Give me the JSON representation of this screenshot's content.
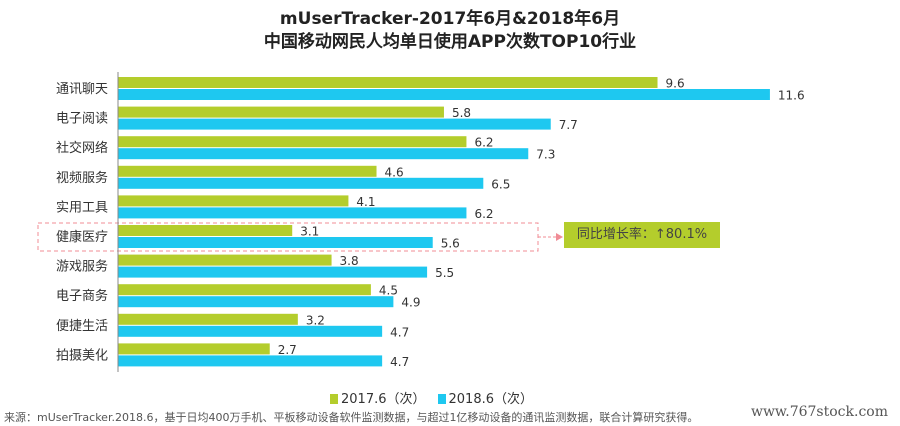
{
  "title_line1": "mUserTracker-2017年6月&2018年6月",
  "title_line2": "中国移动网民人均单日使用APP次数TOP10行业",
  "chart_data": {
    "type": "bar",
    "orientation": "horizontal",
    "categories": [
      "通讯聊天",
      "电子阅读",
      "社交网络",
      "视频服务",
      "实用工具",
      "健康医疗",
      "游戏服务",
      "电子商务",
      "便捷生活",
      "拍摄美化"
    ],
    "series": [
      {
        "name": "2017.6（次）",
        "color": "#b4cd2c",
        "values": [
          9.6,
          5.8,
          6.2,
          4.6,
          4.1,
          3.1,
          3.8,
          4.5,
          3.2,
          2.7
        ]
      },
      {
        "name": "2018.6（次）",
        "color": "#1ec8f0",
        "values": [
          11.6,
          7.7,
          7.3,
          6.5,
          6.2,
          5.6,
          5.5,
          4.9,
          4.7,
          4.7
        ]
      }
    ],
    "xlim": [
      0,
      12
    ],
    "annotation": {
      "category": "健康医疗",
      "text": "同比增长率：↑80.1%"
    }
  },
  "source": "来源：mUserTracker.2018.6，基于日均400万手机、平板移动设备软件监测数据，与超过1亿移动设备的通讯监测数据，联合计算研究获得。",
  "watermark": "www.767stock.com"
}
